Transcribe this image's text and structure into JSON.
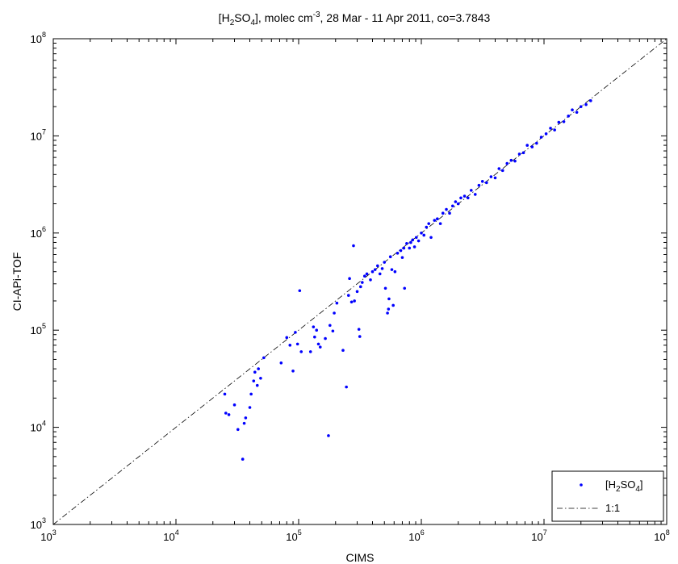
{
  "chart_data": {
    "type": "scatter",
    "title": {
      "main": "H",
      "sub1": "2",
      "mid": "SO",
      "sub2": "4",
      "rest1": "], molec cm",
      "sup": "-3",
      "rest2": ", 28 Mar - 11 Apr 2011, co=3.7843",
      "bracket": "["
    },
    "xlabel": "CIMS",
    "ylabel": "CI-APi-TOF",
    "x_scale": "log",
    "y_scale": "log",
    "xlim": [
      1000,
      100000000
    ],
    "ylim": [
      1000,
      100000000
    ],
    "grid": false,
    "legend_placement": "bottom-right",
    "x_ticks": [
      {
        "base": "10",
        "exp": "3"
      },
      {
        "base": "10",
        "exp": "4"
      },
      {
        "base": "10",
        "exp": "5"
      },
      {
        "base": "10",
        "exp": "6"
      },
      {
        "base": "10",
        "exp": "7"
      },
      {
        "base": "10",
        "exp": "8"
      }
    ],
    "y_ticks": [
      {
        "base": "10",
        "exp": "3"
      },
      {
        "base": "10",
        "exp": "4"
      },
      {
        "base": "10",
        "exp": "5"
      },
      {
        "base": "10",
        "exp": "6"
      },
      {
        "base": "10",
        "exp": "7"
      },
      {
        "base": "10",
        "exp": "8"
      }
    ],
    "series": [
      {
        "name_parts": {
          "open": "[H",
          "sub1": "2",
          "mid": "SO",
          "sub2": "4",
          "close": "]"
        },
        "color": "#0000ff",
        "marker": "dot",
        "points": [
          [
            25000,
            22000
          ],
          [
            25500,
            14000
          ],
          [
            27000,
            13500
          ],
          [
            30000,
            17000
          ],
          [
            32000,
            9500
          ],
          [
            35000,
            4700
          ],
          [
            36000,
            11000
          ],
          [
            37000,
            12500
          ],
          [
            40000,
            16000
          ],
          [
            41000,
            22000
          ],
          [
            43000,
            30000
          ],
          [
            44000,
            37000
          ],
          [
            46000,
            27000
          ],
          [
            47000,
            40000
          ],
          [
            49000,
            32000
          ],
          [
            52000,
            52000
          ],
          [
            72000,
            46000
          ],
          [
            80000,
            84000
          ],
          [
            85000,
            70000
          ],
          [
            90000,
            38000
          ],
          [
            94000,
            95000
          ],
          [
            98000,
            72000
          ],
          [
            102000,
            255000
          ],
          [
            105000,
            60000
          ],
          [
            125000,
            60000
          ],
          [
            132000,
            108000
          ],
          [
            135000,
            85000
          ],
          [
            140000,
            100000
          ],
          [
            145000,
            72000
          ],
          [
            150000,
            67000
          ],
          [
            165000,
            82000
          ],
          [
            175000,
            8200
          ],
          [
            180000,
            112000
          ],
          [
            190000,
            98000
          ],
          [
            195000,
            150000
          ],
          [
            205000,
            190000
          ],
          [
            230000,
            62000
          ],
          [
            245000,
            26000
          ],
          [
            255000,
            228000
          ],
          [
            260000,
            340000
          ],
          [
            270000,
            195000
          ],
          [
            280000,
            740000
          ],
          [
            285000,
            200000
          ],
          [
            300000,
            250000
          ],
          [
            310000,
            102000
          ],
          [
            315000,
            86000
          ],
          [
            320000,
            280000
          ],
          [
            330000,
            310000
          ],
          [
            345000,
            360000
          ],
          [
            360000,
            380000
          ],
          [
            385000,
            330000
          ],
          [
            400000,
            400000
          ],
          [
            420000,
            420000
          ],
          [
            440000,
            460000
          ],
          [
            460000,
            380000
          ],
          [
            480000,
            430000
          ],
          [
            500000,
            500000
          ],
          [
            510000,
            270000
          ],
          [
            530000,
            150000
          ],
          [
            540000,
            165000
          ],
          [
            545000,
            210000
          ],
          [
            560000,
            570000
          ],
          [
            575000,
            420000
          ],
          [
            590000,
            180000
          ],
          [
            610000,
            400000
          ],
          [
            640000,
            620000
          ],
          [
            680000,
            660000
          ],
          [
            700000,
            560000
          ],
          [
            720000,
            700000
          ],
          [
            730000,
            270000
          ],
          [
            760000,
            780000
          ],
          [
            800000,
            700000
          ],
          [
            820000,
            800000
          ],
          [
            850000,
            850000
          ],
          [
            880000,
            720000
          ],
          [
            910000,
            900000
          ],
          [
            950000,
            830000
          ],
          [
            1000000,
            1000000
          ],
          [
            1050000,
            950000
          ],
          [
            1100000,
            1150000
          ],
          [
            1150000,
            1250000
          ],
          [
            1200000,
            900000
          ],
          [
            1280000,
            1350000
          ],
          [
            1350000,
            1400000
          ],
          [
            1430000,
            1250000
          ],
          [
            1500000,
            1600000
          ],
          [
            1600000,
            1750000
          ],
          [
            1700000,
            1600000
          ],
          [
            1800000,
            1900000
          ],
          [
            1900000,
            2100000
          ],
          [
            2000000,
            2000000
          ],
          [
            2100000,
            2300000
          ],
          [
            2250000,
            2400000
          ],
          [
            2400000,
            2300000
          ],
          [
            2550000,
            2750000
          ],
          [
            2750000,
            2500000
          ],
          [
            2950000,
            3100000
          ],
          [
            3150000,
            3400000
          ],
          [
            3400000,
            3300000
          ],
          [
            3700000,
            3800000
          ],
          [
            4000000,
            3700000
          ],
          [
            4300000,
            4600000
          ],
          [
            4600000,
            4400000
          ],
          [
            5000000,
            5200000
          ],
          [
            5400000,
            5600000
          ],
          [
            5800000,
            5500000
          ],
          [
            6300000,
            6500000
          ],
          [
            6800000,
            6700000
          ],
          [
            7300000,
            8000000
          ],
          [
            8000000,
            7700000
          ],
          [
            8700000,
            8400000
          ],
          [
            9500000,
            9700000
          ],
          [
            10400000,
            10500000
          ],
          [
            11300000,
            12000000
          ],
          [
            12200000,
            11500000
          ],
          [
            13200000,
            13800000
          ],
          [
            14500000,
            14000000
          ],
          [
            15800000,
            16000000
          ],
          [
            17000000,
            18500000
          ],
          [
            18500000,
            17500000
          ],
          [
            20000000,
            20000000
          ],
          [
            22000000,
            21000000
          ],
          [
            24000000,
            23000000
          ]
        ]
      },
      {
        "name": "1:1",
        "color": "#000000",
        "line_style": "dash-dot",
        "points": [
          [
            1000,
            1000
          ],
          [
            100000000,
            100000000
          ]
        ]
      }
    ]
  }
}
